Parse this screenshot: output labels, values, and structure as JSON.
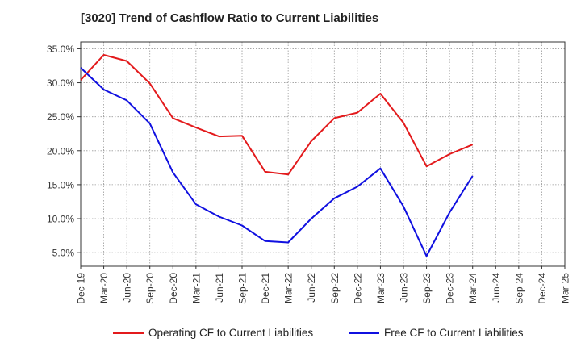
{
  "chart_data": {
    "type": "line",
    "title": "[3020]  Trend of Cashflow Ratio to Current Liabilities",
    "categories": [
      "Dec-19",
      "Mar-20",
      "Jun-20",
      "Sep-20",
      "Dec-20",
      "Mar-21",
      "Jun-21",
      "Sep-21",
      "Dec-21",
      "Mar-22",
      "Jun-22",
      "Sep-22",
      "Dec-22",
      "Mar-23",
      "Jun-23",
      "Sep-23",
      "Dec-23",
      "Mar-24",
      "Jun-24",
      "Sep-24",
      "Dec-24",
      "Mar-25"
    ],
    "y_tick_labels": [
      "5.0%",
      "10.0%",
      "15.0%",
      "20.0%",
      "25.0%",
      "30.0%",
      "35.0%"
    ],
    "y_ticks": [
      5,
      10,
      15,
      20,
      25,
      30,
      35
    ],
    "ylim": [
      3,
      36
    ],
    "grid": true,
    "legend_position": "bottom",
    "series": [
      {
        "name": "Operating CF to Current Liabilities",
        "color": "#e31a1c",
        "values": [
          30.4,
          34.1,
          33.2,
          29.9,
          24.8,
          23.4,
          22.1,
          22.2,
          16.9,
          16.5,
          21.4,
          24.8,
          25.6,
          28.4,
          24.1,
          17.7,
          19.5,
          20.9,
          null,
          null,
          null,
          null
        ]
      },
      {
        "name": "Free CF to Current Liabilities",
        "color": "#1010e0",
        "values": [
          32.2,
          29.0,
          27.4,
          24.0,
          16.8,
          12.1,
          10.3,
          9.0,
          6.7,
          6.5,
          10.0,
          13.0,
          14.7,
          17.4,
          11.8,
          4.5,
          10.9,
          16.3,
          null,
          null,
          null,
          null
        ]
      }
    ]
  }
}
